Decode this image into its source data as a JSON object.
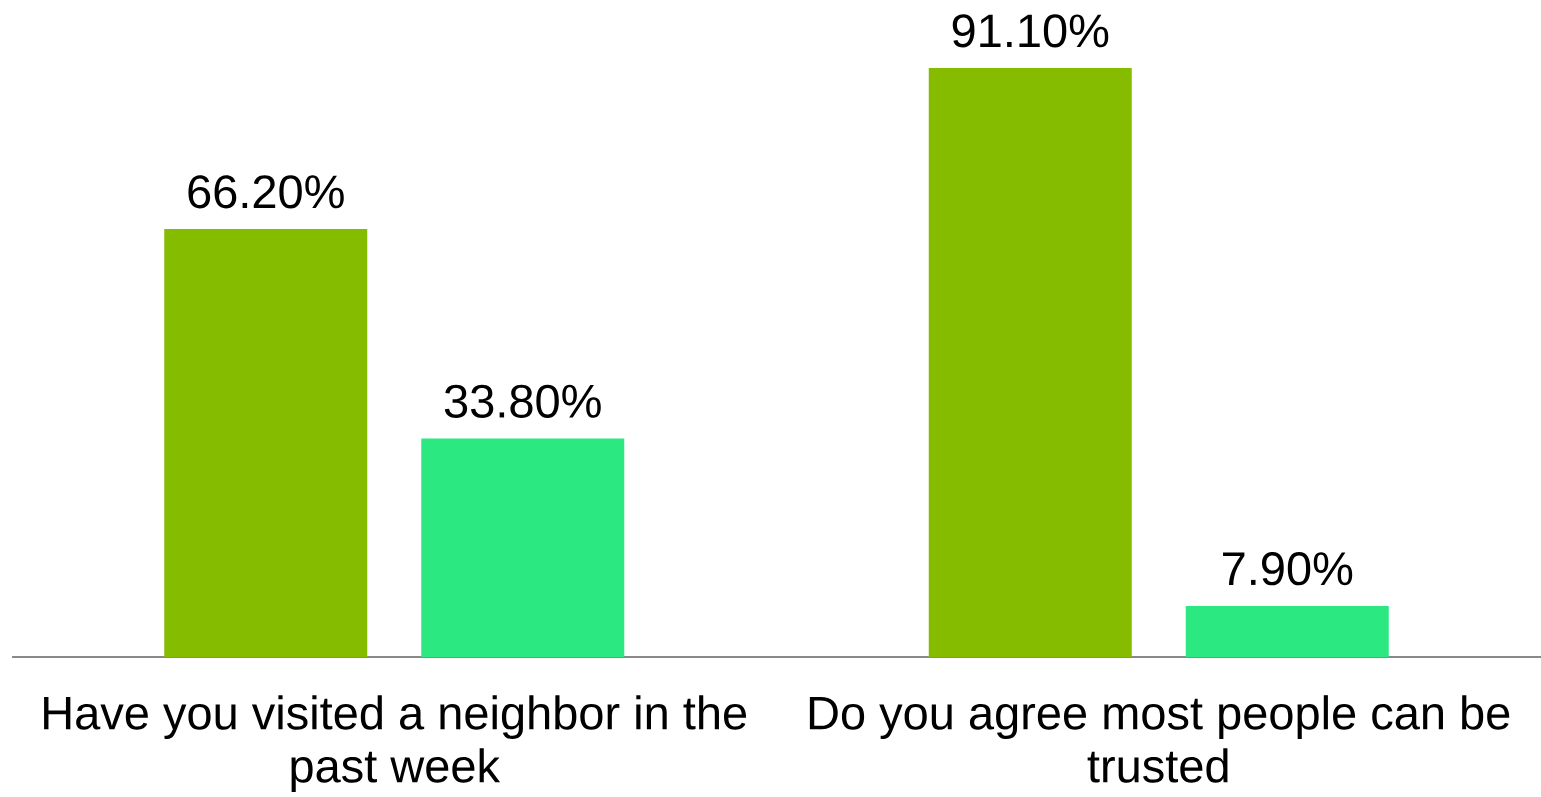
{
  "chart_data": {
    "type": "bar",
    "categories": [
      "Have you visited a neighbor in the past week",
      "Do you agree most people can be trusted"
    ],
    "series": [
      {
        "color": "#86bc00",
        "values": [
          66.2,
          91.1
        ],
        "value_labels": [
          "66.20%",
          "91.10%"
        ]
      },
      {
        "color": "#2ce880",
        "values": [
          33.8,
          7.9
        ],
        "value_labels": [
          "33.80%",
          "7.90%"
        ]
      }
    ],
    "tick_labels": "x"
  }
}
